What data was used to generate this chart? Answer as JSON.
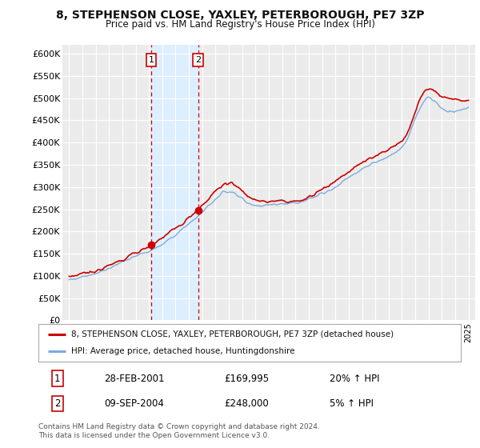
{
  "title": "8, STEPHENSON CLOSE, YAXLEY, PETERBOROUGH, PE7 3ZP",
  "subtitle": "Price paid vs. HM Land Registry's House Price Index (HPI)",
  "red_label": "8, STEPHENSON CLOSE, YAXLEY, PETERBOROUGH, PE7 3ZP (detached house)",
  "blue_label": "HPI: Average price, detached house, Huntingdonshire",
  "transaction1_date": "28-FEB-2001",
  "transaction1_price": "£169,995",
  "transaction1_hpi": "20% ↑ HPI",
  "transaction2_date": "09-SEP-2004",
  "transaction2_price": "£248,000",
  "transaction2_hpi": "5% ↑ HPI",
  "footer": "Contains HM Land Registry data © Crown copyright and database right 2024.\nThis data is licensed under the Open Government Licence v3.0.",
  "ylim": [
    0,
    620000
  ],
  "yticks": [
    0,
    50000,
    100000,
    150000,
    200000,
    250000,
    300000,
    350000,
    400000,
    450000,
    500000,
    550000,
    600000
  ],
  "background_color": "#ffffff",
  "plot_bg_color": "#ebebeb",
  "grid_color": "#ffffff",
  "red_color": "#cc0000",
  "blue_color": "#7aaddb",
  "shade_color": "#ddeeff",
  "t1_year": 2001.16,
  "t1_value": 169995,
  "t2_year": 2004.69,
  "t2_value": 248000
}
